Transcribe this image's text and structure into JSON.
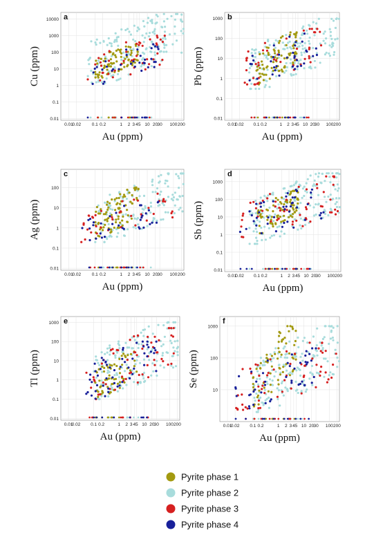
{
  "chart_data": [
    {
      "type": "scatter",
      "panel": "a",
      "xlabel": "Au (ppm)",
      "ylabel": "Cu (ppm)",
      "xscale": "log",
      "yscale": "log",
      "xlim": [
        0.005,
        250
      ],
      "ylim": [
        0.008,
        25000
      ],
      "x_ticks": [
        "0.01",
        "0.02",
        "0.1",
        "0.2",
        "1",
        "2",
        "3",
        "4",
        "5",
        "10",
        "20",
        "30",
        "100",
        "200"
      ],
      "y_ticks": [
        "0.01",
        "0.1",
        "1",
        "10",
        "100",
        "1000",
        "10000"
      ],
      "y_tick_values": [
        0.01,
        0.1,
        1,
        10,
        100,
        1000,
        10000
      ],
      "grid": true,
      "clusters": [
        {
          "series": "Pyrite phase 2",
          "x": [
            0.05,
            250
          ],
          "y": [
            1,
            20000
          ],
          "n": 170
        },
        {
          "series": "Pyrite phase 1",
          "x": [
            0.1,
            5
          ],
          "y": [
            3,
            300
          ],
          "n": 80
        },
        {
          "series": "Pyrite phase 3",
          "x": [
            0.05,
            50
          ],
          "y": [
            1,
            1000
          ],
          "n": 45
        },
        {
          "series": "Pyrite phase 4",
          "x": [
            0.05,
            30
          ],
          "y": [
            1,
            300
          ],
          "n": 35
        }
      ]
    },
    {
      "type": "scatter",
      "panel": "b",
      "xlabel": "Au (ppm)",
      "ylabel": "Pb (ppm)",
      "xscale": "log",
      "yscale": "log",
      "xlim": [
        0.005,
        250
      ],
      "ylim": [
        0.008,
        2000
      ],
      "x_ticks": [
        "0.01",
        "0.02",
        "0.1",
        "0.2",
        "1",
        "2",
        "3",
        "4",
        "5",
        "10",
        "20",
        "30",
        "100",
        "200"
      ],
      "y_ticks": [
        "0.01",
        "0.1",
        "1",
        "10",
        "100",
        "1000"
      ],
      "y_tick_values": [
        0.01,
        0.1,
        1,
        10,
        100,
        1000
      ],
      "grid": true,
      "clusters": [
        {
          "series": "Pyrite phase 2",
          "x": [
            0.05,
            250
          ],
          "y": [
            0.3,
            1000
          ],
          "n": 170
        },
        {
          "series": "Pyrite phase 1",
          "x": [
            0.1,
            5
          ],
          "y": [
            0.5,
            200
          ],
          "n": 80
        },
        {
          "series": "Pyrite phase 3",
          "x": [
            0.03,
            50
          ],
          "y": [
            0.5,
            300
          ],
          "n": 45
        },
        {
          "series": "Pyrite phase 4",
          "x": [
            0.03,
            30
          ],
          "y": [
            0.5,
            200
          ],
          "n": 35
        }
      ]
    },
    {
      "type": "scatter",
      "panel": "c",
      "xlabel": "Au (ppm)",
      "ylabel": "Ag (ppm)",
      "xscale": "log",
      "yscale": "log",
      "xlim": [
        0.005,
        250
      ],
      "ylim": [
        0.008,
        800
      ],
      "x_ticks": [
        "0.01",
        "0.02",
        "0.1",
        "0.2",
        "1",
        "2",
        "3",
        "4",
        "5",
        "10",
        "20",
        "30",
        "100",
        "200"
      ],
      "y_ticks": [
        "0.01",
        "0.1",
        "1",
        "10",
        "100"
      ],
      "y_tick_values": [
        0.01,
        0.1,
        1,
        10,
        100
      ],
      "grid": true,
      "clusters": [
        {
          "series": "Pyrite phase 2",
          "x": [
            0.1,
            250
          ],
          "y": [
            0.2,
            500
          ],
          "n": 150
        },
        {
          "series": "Pyrite phase 1",
          "x": [
            0.1,
            5
          ],
          "y": [
            0.3,
            100
          ],
          "n": 90
        },
        {
          "series": "Pyrite phase 3",
          "x": [
            0.03,
            100
          ],
          "y": [
            0.2,
            50
          ],
          "n": 40
        },
        {
          "series": "Pyrite phase 4",
          "x": [
            0.03,
            30
          ],
          "y": [
            0.2,
            20
          ],
          "n": 35
        }
      ]
    },
    {
      "type": "scatter",
      "panel": "d",
      "xlabel": "Au (ppm)",
      "ylabel": "Sb (ppm)",
      "xscale": "log",
      "yscale": "log",
      "xlim": [
        0.005,
        250
      ],
      "ylim": [
        0.008,
        5000
      ],
      "x_ticks": [
        "0.01",
        "0.02",
        "0.1",
        "0.2",
        "1",
        "2",
        "3",
        "4",
        "5",
        "10",
        "20",
        "30",
        "100",
        "200"
      ],
      "y_ticks": [
        "0.01",
        "0.1",
        "1",
        "10",
        "100",
        "1000"
      ],
      "y_tick_values": [
        0.01,
        0.1,
        1,
        10,
        100,
        1000
      ],
      "grid": true,
      "clusters": [
        {
          "series": "Pyrite phase 2",
          "x": [
            0.05,
            250
          ],
          "y": [
            0.3,
            3000
          ],
          "n": 180
        },
        {
          "series": "Pyrite phase 1",
          "x": [
            0.1,
            5
          ],
          "y": [
            1,
            300
          ],
          "n": 80
        },
        {
          "series": "Pyrite phase 3",
          "x": [
            0.02,
            200
          ],
          "y": [
            0.3,
            2000
          ],
          "n": 55
        },
        {
          "series": "Pyrite phase 4",
          "x": [
            0.02,
            50
          ],
          "y": [
            0.3,
            500
          ],
          "n": 45
        }
      ]
    },
    {
      "type": "scatter",
      "panel": "e",
      "xlabel": "Au (ppm)",
      "ylabel": "Tl (ppm)",
      "xscale": "log",
      "yscale": "log",
      "xlim": [
        0.005,
        250
      ],
      "ylim": [
        0.008,
        2000
      ],
      "x_ticks": [
        "0.01",
        "0.02",
        "0.1",
        "0.2",
        "1",
        "2",
        "3",
        "4",
        "5",
        "10",
        "20",
        "30",
        "100",
        "200"
      ],
      "y_ticks": [
        "0.01",
        "0.1",
        "1",
        "10",
        "100",
        "1000"
      ],
      "y_tick_values": [
        0.01,
        0.1,
        1,
        10,
        100,
        1000
      ],
      "grid": true,
      "clusters": [
        {
          "series": "Pyrite phase 2",
          "x": [
            0.1,
            250
          ],
          "y": [
            0.1,
            1000
          ],
          "n": 160
        },
        {
          "series": "Pyrite phase 1",
          "x": [
            0.1,
            5
          ],
          "y": [
            0.1,
            30
          ],
          "n": 60
        },
        {
          "series": "Pyrite phase 3",
          "x": [
            0.05,
            200
          ],
          "y": [
            0.1,
            500
          ],
          "n": 60
        },
        {
          "series": "Pyrite phase 4",
          "x": [
            0.05,
            30
          ],
          "y": [
            0.1,
            100
          ],
          "n": 55
        }
      ]
    },
    {
      "type": "scatter",
      "panel": "f",
      "xlabel": "Au (ppm)",
      "ylabel": "Se (ppm)",
      "xscale": "log",
      "yscale": "log",
      "xlim": [
        0.005,
        250
      ],
      "ylim": [
        1,
        2000
      ],
      "x_ticks": [
        "0.01",
        "0.02",
        "0.1",
        "0.2",
        "1",
        "2",
        "3",
        "4",
        "5",
        "10",
        "20",
        "30",
        "100",
        "200"
      ],
      "y_ticks": [
        "10",
        "100",
        "1000"
      ],
      "y_tick_values": [
        10,
        100,
        1000
      ],
      "grid": true,
      "clusters": [
        {
          "series": "Pyrite phase 2",
          "x": [
            0.1,
            250
          ],
          "y": [
            2,
            1000
          ],
          "n": 170
        },
        {
          "series": "Pyrite phase 1",
          "x": [
            0.1,
            5
          ],
          "y": [
            3,
            1000
          ],
          "n": 70
        },
        {
          "series": "Pyrite phase 3",
          "x": [
            0.02,
            200
          ],
          "y": [
            2,
            300
          ],
          "n": 60
        },
        {
          "series": "Pyrite phase 4",
          "x": [
            0.02,
            30
          ],
          "y": [
            2,
            200
          ],
          "n": 45
        }
      ]
    }
  ],
  "legend": [
    {
      "label": "Pyrite phase 1",
      "color": "#a39a10"
    },
    {
      "label": "Pyrite phase 2",
      "color": "#a8dcdc"
    },
    {
      "label": "Pyrite phase 3",
      "color": "#d62020"
    },
    {
      "label": "Pyrite phase 4",
      "color": "#18209a"
    }
  ]
}
